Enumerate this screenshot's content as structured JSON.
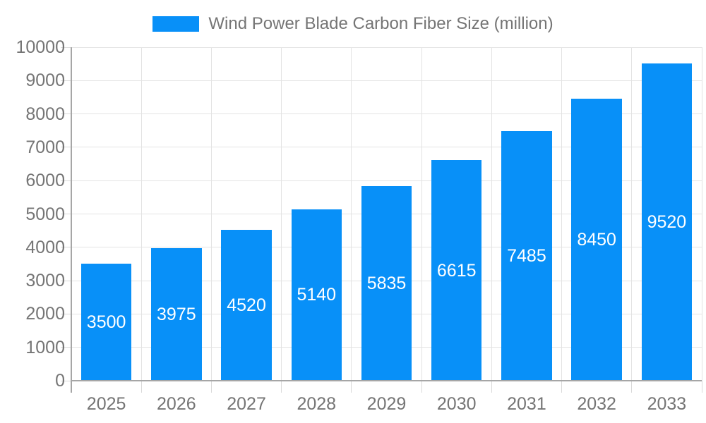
{
  "chart": {
    "colors": {
      "bar": "#0890f8",
      "bar_label_text": "#ffffff",
      "axis_text": "#757575",
      "axis_line": "#a6a6a6",
      "gridline": "#e3e3e3",
      "tick": "#d9d9d9",
      "background": "#ffffff"
    }
  },
  "chart_data": {
    "type": "bar",
    "title": "Wind Power Blade Carbon Fiber Size (million)",
    "categories": [
      "2025",
      "2026",
      "2027",
      "2028",
      "2029",
      "2030",
      "2031",
      "2032",
      "2033"
    ],
    "values": [
      3500,
      3975,
      4520,
      5140,
      5835,
      6615,
      7485,
      8450,
      9520
    ],
    "xlabel": "",
    "ylabel": "",
    "ylim": [
      0,
      10000
    ],
    "ytick_step": 1000,
    "ytick_labels": [
      "0",
      "1000",
      "2000",
      "3000",
      "4000",
      "5000",
      "6000",
      "7000",
      "8000",
      "9000",
      "10000"
    ],
    "grid": true,
    "legend_position": "top-center",
    "value_label_position": "inside-center"
  }
}
